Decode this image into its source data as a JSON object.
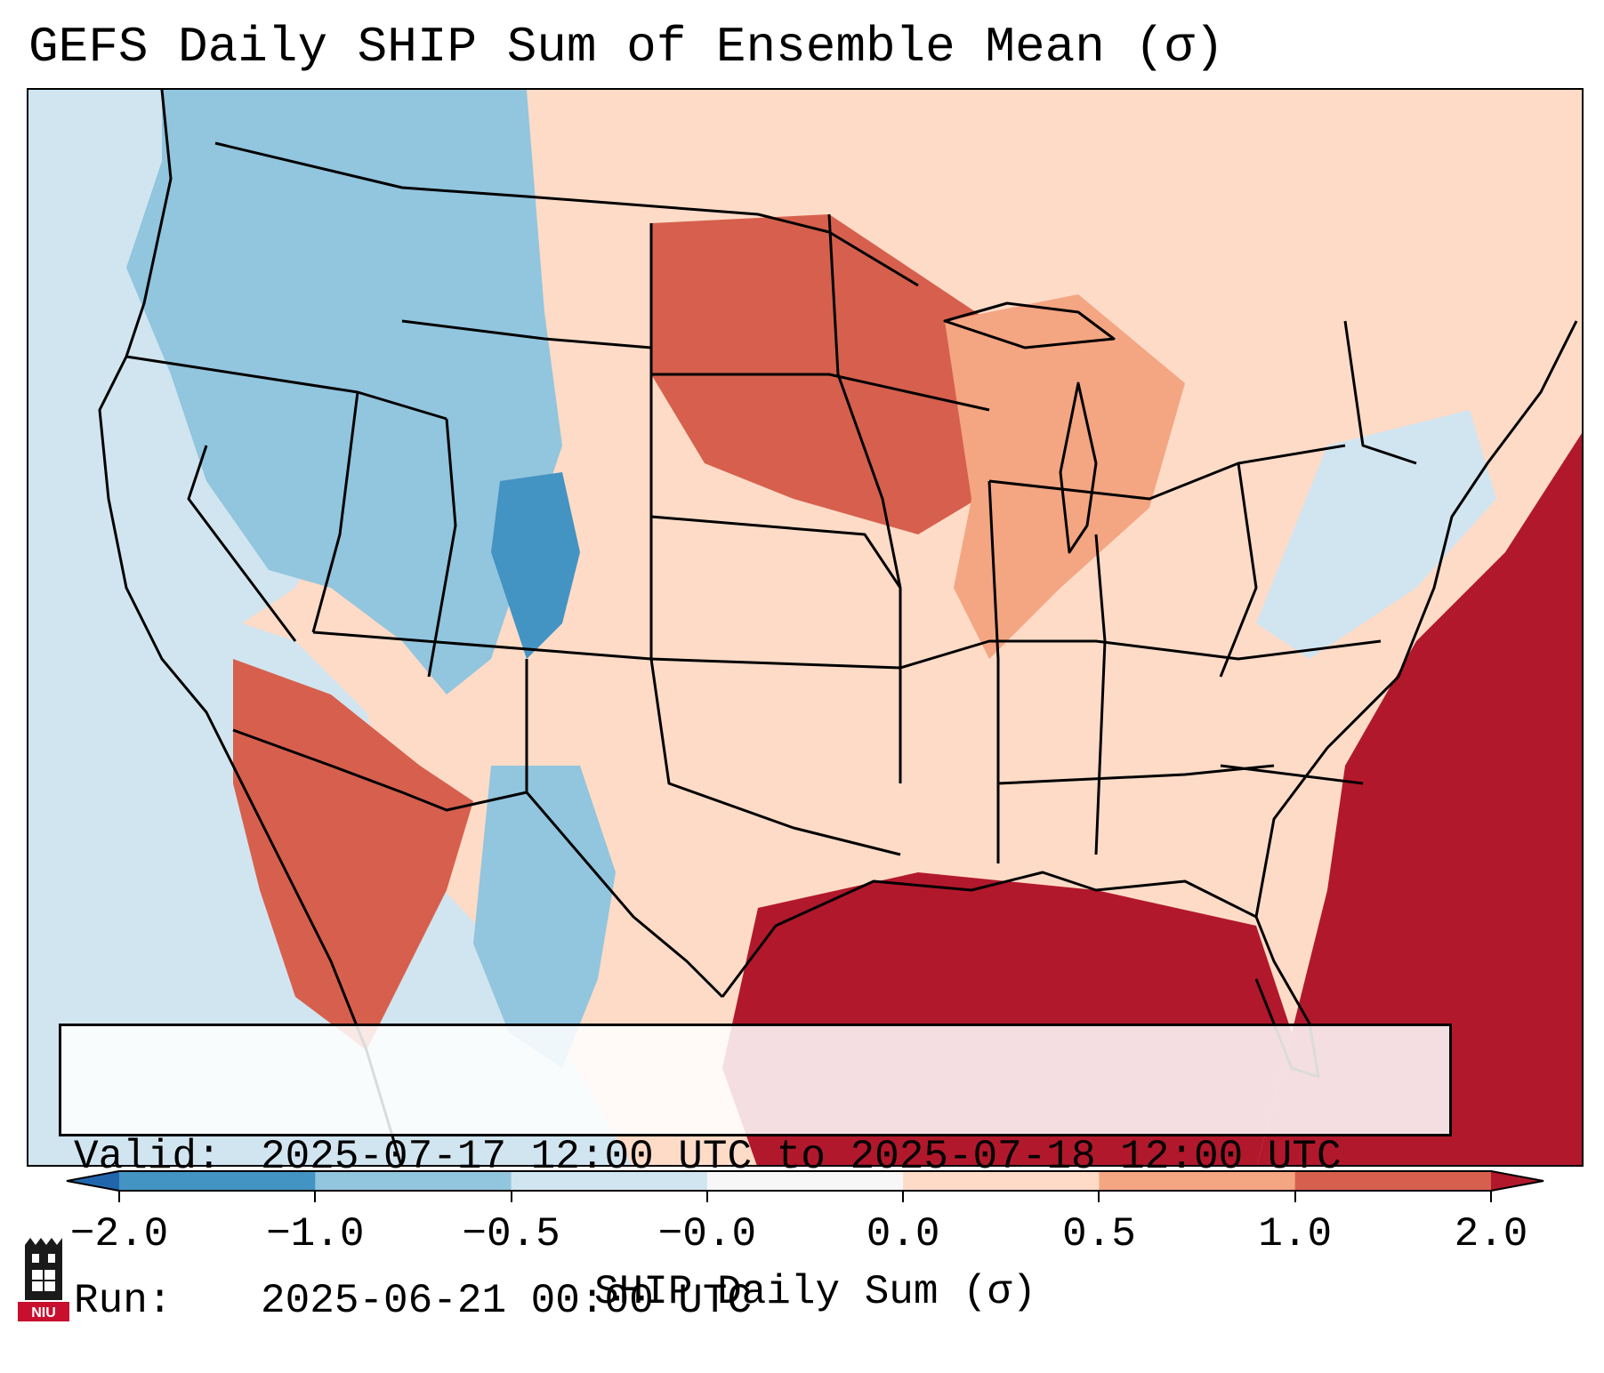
{
  "title": "GEFS Daily SHIP Sum of Ensemble Mean (σ)",
  "info": {
    "valid_label": "Valid:",
    "valid_value": "2025-07-17 12:00 UTC to 2025-07-18 12:00 UTC",
    "run_label": "Run:",
    "run_value": "2025-06-21 00:00 UTC"
  },
  "colorbar": {
    "label": "SHIP Daily Sum (σ)",
    "ticks": [
      "−2.0",
      "−1.0",
      "−0.5",
      "−0.0",
      "0.0",
      "0.5",
      "1.0",
      "2.0"
    ],
    "bins": [
      {
        "range": "below -2.0",
        "color": "#2166ac"
      },
      {
        "range": "-2.0 to -1.0",
        "color": "#4393c3"
      },
      {
        "range": "-1.0 to -0.5",
        "color": "#92c5de"
      },
      {
        "range": "-0.5 to -0.0",
        "color": "#d1e5f0"
      },
      {
        "range": "-0.0 to 0.0",
        "color": "#f7f7f7"
      },
      {
        "range": "0.0 to 0.5",
        "color": "#fddbc7"
      },
      {
        "range": "0.5 to 1.0",
        "color": "#f4a582"
      },
      {
        "range": "1.0 to 2.0",
        "color": "#d6604d"
      },
      {
        "range": "above 2.0",
        "color": "#b2182b"
      }
    ]
  },
  "map_regions": [
    {
      "name": "pacific-ocean",
      "color": "#d1e5f0"
    },
    {
      "name": "pacific-northwest",
      "color": "#92c5de"
    },
    {
      "name": "northern-rockies",
      "color": "#92c5de"
    },
    {
      "name": "colorado-core",
      "color": "#4393c3"
    },
    {
      "name": "northern-plains",
      "color": "#d6604d"
    },
    {
      "name": "great-lakes",
      "color": "#f4a582"
    },
    {
      "name": "eastern-us",
      "color": "#fddbc7"
    },
    {
      "name": "desert-southwest",
      "color": "#d6604d"
    },
    {
      "name": "gulf-of-mexico",
      "color": "#b2182b"
    },
    {
      "name": "atlantic-ocean",
      "color": "#b2182b"
    },
    {
      "name": "texas-west",
      "color": "#92c5de"
    },
    {
      "name": "mid-atlantic-coast",
      "color": "#d1e5f0"
    }
  ],
  "logo_text": "NIU"
}
